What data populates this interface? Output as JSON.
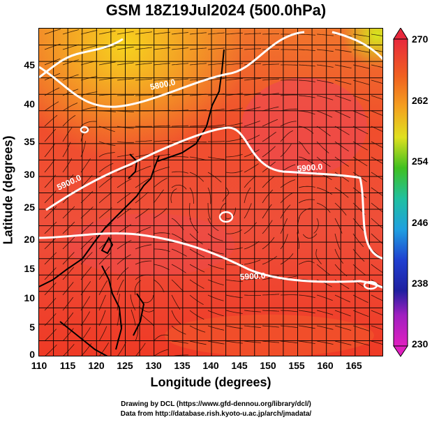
{
  "title": "GSM 18Z19Jul2024 (500.0hPa)",
  "xlabel": "Longitude (degrees)",
  "ylabel": "Latitude  (degrees)",
  "x_ticks": [
    "110",
    "115",
    "120",
    "125",
    "130",
    "135",
    "140",
    "145",
    "150",
    "155",
    "160",
    "165"
  ],
  "y_ticks": [
    "0",
    "5",
    "10",
    "15",
    "20",
    "25",
    "30",
    "35",
    "40",
    "45"
  ],
  "colorbar_ticks": [
    "230",
    "238",
    "246",
    "254",
    "262",
    "270"
  ],
  "contour_labels": [
    "5800.0",
    "5900.0",
    "5900.0",
    "5900.0"
  ],
  "credit_line_1": "Drawing by DCL (https://www.gfd-dennou.org/library/dcl/)",
  "credit_line_2": "Data from http://database.rish.kyoto-u.ac.jp/arch/jmadata/",
  "map": {
    "lon_range": [
      110,
      170
    ],
    "lat_range": [
      0,
      50
    ],
    "field": "temperature shading (K) with geopotential height contours (m) and wind streamlines",
    "colorbar_range": [
      230,
      270
    ],
    "colors": {
      "warm": "#f0402a",
      "hot": "#f26b2c",
      "coast": "#000000",
      "contour": "#ffffff",
      "grid": "#000000"
    }
  }
}
